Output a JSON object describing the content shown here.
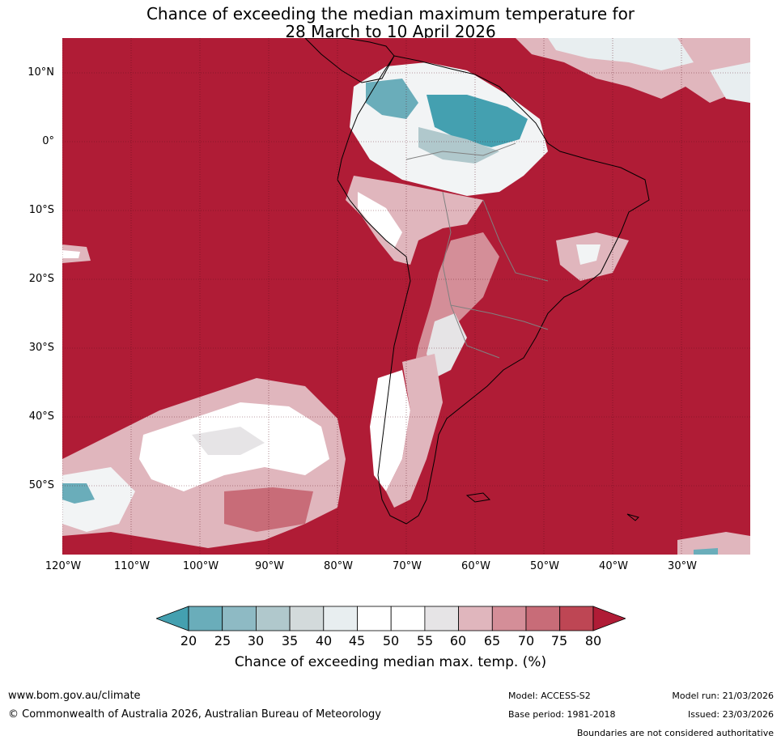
{
  "title": {
    "line1": "Chance of exceeding the median maximum temperature for",
    "line2": "28 March to 10 April 2026"
  },
  "map": {
    "lat_labels": [
      "10°N",
      "0°",
      "10°S",
      "20°S",
      "30°S",
      "40°S",
      "50°S"
    ],
    "lon_labels": [
      "120°W",
      "110°W",
      "100°W",
      "90°W",
      "80°W",
      "70°W",
      "60°W",
      "50°W",
      "40°W",
      "30°W"
    ]
  },
  "colorbar": {
    "ticks": [
      "20",
      "25",
      "30",
      "35",
      "40",
      "45",
      "50",
      "55",
      "60",
      "65",
      "70",
      "75",
      "80"
    ],
    "colors": [
      "#44a0b0",
      "#6aadba",
      "#8ebac4",
      "#b0c8cc",
      "#d3dadb",
      "#e8eef0",
      "#ffffff",
      "#ffffff",
      "#e6e4e6",
      "#e0b6bd",
      "#d48e98",
      "#c86c78",
      "#be4654",
      "#b01c36"
    ],
    "label": "Chance of exceeding median max. temp. (%)"
  },
  "footer": {
    "url": "www.bom.gov.au/climate",
    "copyright": "© Commonwealth of Australia 2026, Australian Bureau of Meteorology",
    "model": "Model: ACCESS-S2",
    "base_period": "Base period: 1981-2018",
    "model_run": "Model run: 21/03/2026",
    "issued": "Issued: 23/03/2026",
    "disclaimer": "Boundaries are not considered authoritative"
  }
}
